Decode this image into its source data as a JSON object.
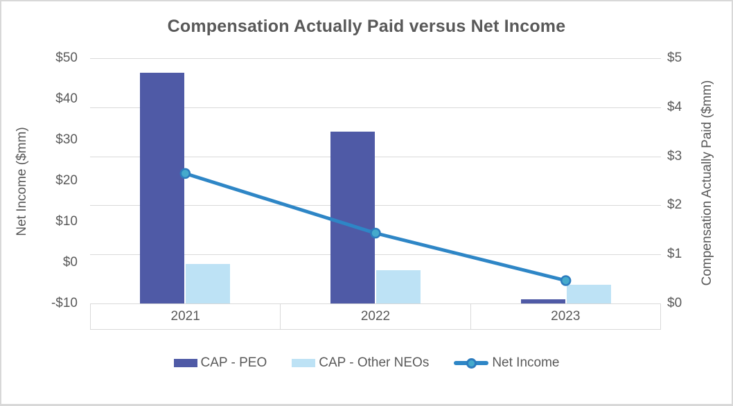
{
  "chart": {
    "title": "Compensation Actually Paid versus Net Income"
  },
  "chart_data": {
    "type": "bar",
    "subtype": "combo-bar-line-dual-axis",
    "title": "Compensation Actually Paid versus Net Income",
    "categories": [
      "2021",
      "2022",
      "2023"
    ],
    "series": [
      {
        "name": "CAP - PEO",
        "kind": "bar",
        "axis": "right",
        "values": [
          4.7,
          3.5,
          0.08
        ],
        "color": "#4f5aa6"
      },
      {
        "name": "CAP - Other NEOs",
        "kind": "bar",
        "axis": "right",
        "values": [
          0.8,
          0.68,
          0.38
        ],
        "color": "#bde2f5"
      },
      {
        "name": "Net Income",
        "kind": "line",
        "axis": "left",
        "values": [
          21.8,
          7.2,
          -4.4
        ],
        "color": "#2e86c6",
        "marker_fill": "#45aacc",
        "marker_stroke": "#2c7cbe"
      }
    ],
    "left_axis": {
      "title": "Net Income ($mm)",
      "min": -10,
      "max": 50,
      "step": 10,
      "ticks": [
        {
          "label": "$50",
          "value": 50
        },
        {
          "label": "$40",
          "value": 40
        },
        {
          "label": "$30",
          "value": 30
        },
        {
          "label": "$20",
          "value": 20
        },
        {
          "label": "$10",
          "value": 10
        },
        {
          "label": "$0",
          "value": 0
        },
        {
          "label": "-$10",
          "value": -10
        }
      ]
    },
    "right_axis": {
      "title": "Compensation Actually Paid ($mm)",
      "min": 0,
      "max": 5,
      "step": 1,
      "ticks": [
        {
          "label": "$5",
          "value": 5
        },
        {
          "label": "$4",
          "value": 4
        },
        {
          "label": "$3",
          "value": 3
        },
        {
          "label": "$2",
          "value": 2
        },
        {
          "label": "$1",
          "value": 1
        },
        {
          "label": "$0",
          "value": 0
        }
      ]
    },
    "grid": true,
    "gridline_color": "#d9d9d9",
    "legend_position": "bottom",
    "legend": [
      "CAP - PEO",
      "CAP - Other NEOs",
      "Net Income"
    ]
  },
  "colors": {
    "title_text": "#595959",
    "axis_text": "#595959",
    "gridline": "#d9d9d9",
    "band_border": "#d9d9d9",
    "figure_border": "#d8d8d8"
  }
}
